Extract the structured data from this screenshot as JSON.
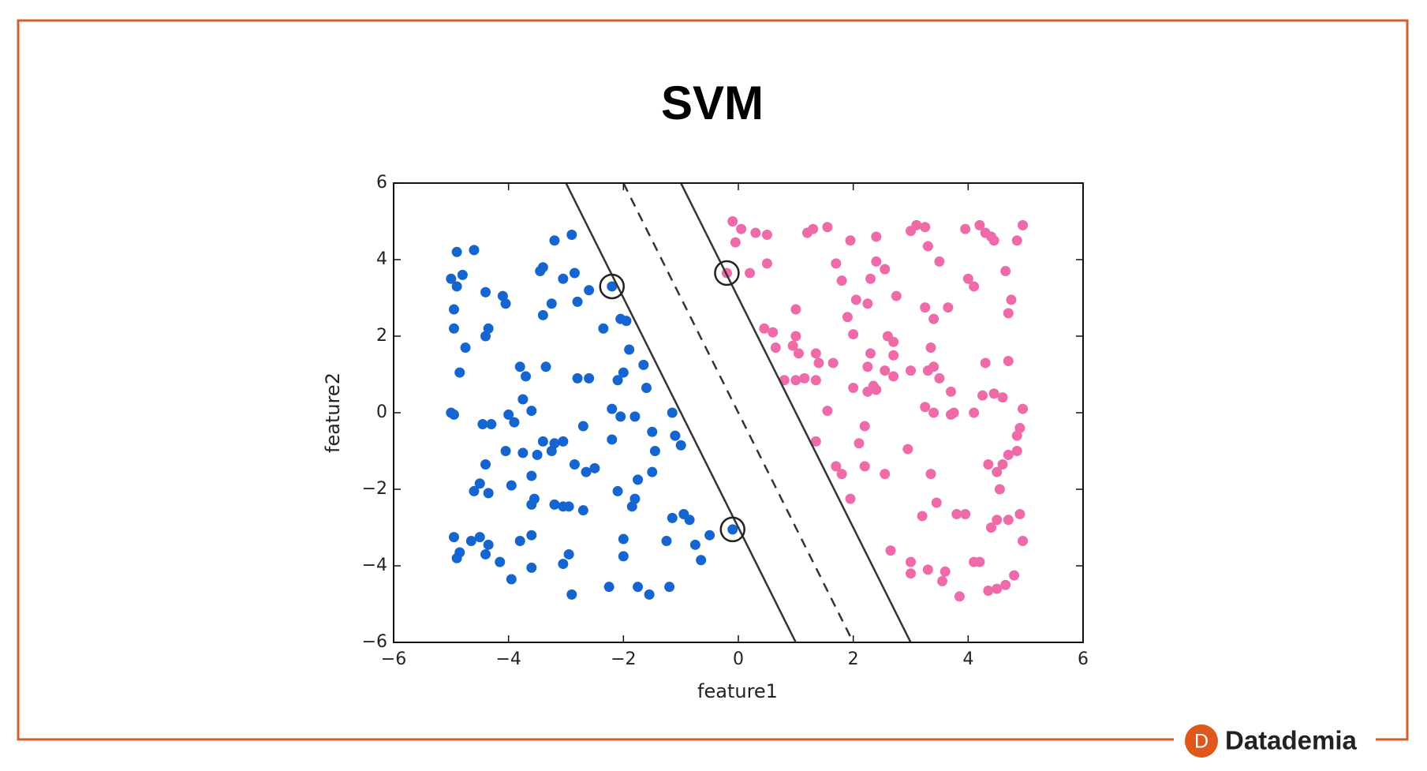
{
  "chart_data": {
    "type": "scatter",
    "title": "SVM",
    "xlabel": "feature1",
    "ylabel": "feature2",
    "xlim": [
      -6,
      6
    ],
    "ylim": [
      -6,
      6
    ],
    "xticks": [
      {
        "value": -6,
        "label": "−6"
      },
      {
        "value": -4,
        "label": "−4"
      },
      {
        "value": -2,
        "label": "−2"
      },
      0,
      2,
      4,
      6
    ],
    "yticks": [
      {
        "value": -6,
        "label": "−6"
      },
      {
        "value": -4,
        "label": "−4"
      },
      {
        "value": -2,
        "label": "−2"
      },
      0,
      2,
      4,
      6
    ],
    "series": [
      {
        "marker": "dot",
        "color": "#1565d0",
        "x": [
          -4.9,
          -4.6,
          -5,
          -4.8,
          -4.4,
          -4.9,
          -4.95,
          -4.1,
          -4.05,
          -4.35,
          -4.95,
          -4.4,
          -4.75,
          -4.85,
          -3.4,
          -3.45,
          -3.2,
          -2.9,
          -3.05,
          -2.85,
          -3.4,
          -3.25,
          -2.8,
          -2.6,
          -2.35,
          -2.05,
          -1.95,
          -1.9,
          -1.65,
          -2.0,
          -2.1,
          -2.6,
          -2.8,
          -1.6,
          -3.8,
          -3.7,
          -3.35,
          -3.75,
          -3.6,
          -4.0,
          -3.9,
          -4.3,
          -4.45,
          -4.95,
          -5,
          -3.4,
          -3.2,
          -3.05,
          -3.25,
          -3.5,
          -3.75,
          -4.05,
          -4.4,
          -4.5,
          -4.6,
          -4.35,
          -3.95,
          -3.6,
          -3.6,
          -3.55,
          -3.2,
          -3.05,
          -2.95,
          -2.7,
          -2.85,
          -2.65,
          -2.5,
          -2.7,
          -2.2,
          -2.2,
          -2.05,
          -1.8,
          -1.5,
          -1.15,
          -1.1,
          -1.0,
          -1.45,
          -1.5,
          -1.75,
          -1.8,
          -2.1,
          -1.85,
          -2.0,
          -2.0,
          -1.15,
          -0.95,
          -0.85,
          -1.25,
          -0.75,
          -0.5,
          -0.65,
          -0.1,
          -4.95,
          -4.85,
          -4.9,
          -4.65,
          -4.5,
          -4.35,
          -4.4,
          -4.15,
          -3.95,
          -3.8,
          -3.6,
          -3.6,
          -3.05,
          -2.95,
          -2.9,
          -2.25,
          -1.75,
          -1.55,
          -1.2,
          -2.2
        ],
        "values": [
          4.2,
          4.25,
          3.5,
          3.6,
          3.15,
          3.3,
          2.7,
          3.05,
          2.85,
          2.2,
          2.2,
          2.0,
          1.7,
          1.05,
          3.8,
          3.7,
          4.5,
          4.65,
          3.5,
          3.65,
          2.55,
          2.85,
          2.9,
          3.2,
          2.2,
          2.45,
          2.4,
          1.65,
          1.25,
          1.05,
          0.85,
          0.9,
          0.9,
          0.65,
          1.2,
          0.95,
          1.2,
          0.35,
          0.05,
          -0.05,
          -0.25,
          -0.3,
          -0.3,
          -0.05,
          0,
          -0.75,
          -0.8,
          -0.75,
          -1.0,
          -1.1,
          -1.05,
          -1.0,
          -1.35,
          -1.85,
          -2.05,
          -2.1,
          -1.9,
          -1.65,
          -2.4,
          -2.25,
          -2.4,
          -2.45,
          -2.45,
          -2.55,
          -1.35,
          -1.55,
          -1.45,
          -0.35,
          -0.7,
          0.1,
          -0.1,
          -0.1,
          -0.5,
          0.0,
          -0.6,
          -0.85,
          -1.0,
          -1.55,
          -1.75,
          -2.25,
          -2.05,
          -2.45,
          -3.3,
          -3.75,
          -2.75,
          -2.65,
          -2.8,
          -3.35,
          -3.45,
          -3.2,
          -3.85,
          -3.05,
          -3.25,
          -3.65,
          -3.8,
          -3.35,
          -3.25,
          -3.45,
          -3.7,
          -3.9,
          -4.35,
          -3.35,
          -3.2,
          -4.05,
          -3.95,
          -3.7,
          -4.75,
          -4.55,
          -4.55,
          -4.75,
          -4.55,
          3.3
        ]
      },
      {
        "marker": "dot",
        "color": "#ee6aa8",
        "x": [
          -0.1,
          0.05,
          0.3,
          0.5,
          -0.05,
          1.2,
          1.3,
          1.55,
          1.95,
          2.4,
          2.75,
          3.1,
          3.25,
          3.0,
          3.3,
          3.5,
          3.95,
          4.2,
          4.3,
          4.4,
          4.45,
          4.85,
          4.95,
          0.2,
          0.5,
          -0.2,
          1.7,
          1.8,
          2.3,
          2.4,
          2.55,
          4.0,
          4.1,
          4.65,
          4.75,
          4.7,
          1.0,
          0.45,
          0.6,
          1.9,
          2.05,
          2.25,
          3.25,
          3.4,
          3.65,
          2.0,
          2.6,
          2.7,
          0.65,
          0.95,
          1.0,
          1.05,
          1.35,
          1.4,
          1.65,
          2.3,
          2.7,
          3.35,
          2.25,
          2.55,
          2.7,
          3.0,
          3.3,
          3.4,
          3.5,
          4.3,
          4.7,
          0.8,
          1.0,
          1.15,
          1.35,
          2.0,
          2.25,
          2.35,
          2.4,
          3.25,
          3.4,
          3.7,
          3.75,
          3.7,
          4.1,
          4.25,
          4.45,
          4.6,
          4.95,
          1.55,
          2.2,
          2.1,
          1.35,
          1.7,
          1.8,
          1.95,
          2.2,
          2.55,
          2.95,
          3.35,
          3.45,
          3.2,
          3.8,
          3.95,
          4.35,
          4.5,
          4.6,
          4.7,
          4.85,
          4.85,
          4.9,
          4.55,
          4.5,
          4.4,
          4.7,
          4.9,
          4.95,
          2.65,
          3.0,
          3.0,
          3.3,
          3.6,
          3.55,
          3.85,
          4.1,
          4.2,
          4.35,
          4.5,
          4.65,
          4.8
        ],
        "values": [
          5.0,
          4.8,
          4.7,
          4.65,
          4.45,
          4.7,
          4.8,
          4.85,
          4.5,
          4.6,
          3.05,
          4.9,
          4.85,
          4.75,
          4.35,
          3.95,
          4.8,
          4.9,
          4.7,
          4.6,
          4.5,
          4.5,
          4.9,
          3.65,
          3.9,
          3.65,
          3.9,
          3.45,
          3.5,
          3.95,
          3.75,
          3.5,
          3.3,
          3.7,
          2.95,
          2.6,
          2.7,
          2.2,
          2.1,
          2.5,
          2.95,
          2.85,
          2.75,
          2.45,
          2.75,
          2.05,
          2.0,
          1.85,
          1.7,
          1.75,
          2.0,
          1.55,
          1.55,
          1.3,
          1.3,
          1.55,
          1.5,
          1.7,
          1.2,
          1.1,
          0.95,
          1.1,
          1.1,
          1.2,
          0.9,
          1.3,
          1.35,
          0.85,
          0.85,
          0.9,
          0.85,
          0.65,
          0.55,
          0.7,
          0.6,
          0.15,
          0.0,
          0.55,
          0.0,
          -0.05,
          0.0,
          0.45,
          0.5,
          0.4,
          0.1,
          0.05,
          -0.35,
          -0.8,
          -0.75,
          -1.4,
          -1.6,
          -2.25,
          -1.4,
          -1.6,
          -0.95,
          -1.6,
          -2.35,
          -2.7,
          -2.65,
          -2.65,
          -1.35,
          -1.55,
          -1.35,
          -1.1,
          -1.0,
          -0.6,
          -0.4,
          -2.0,
          -2.8,
          -3.0,
          -2.8,
          -2.65,
          -3.35,
          -3.6,
          -3.9,
          -4.2,
          -4.1,
          -4.15,
          -4.4,
          -4.8,
          -3.9,
          -3.9,
          -4.65,
          -4.6,
          -4.5,
          -4.25
        ]
      },
      {
        "marker": "line",
        "style": "solid",
        "color": "#333333",
        "x": [
          -3,
          1
        ],
        "values": [
          6,
          -6
        ]
      },
      {
        "marker": "line",
        "style": "dashed",
        "color": "#333333",
        "x": [
          -2,
          2
        ],
        "values": [
          6,
          -6
        ]
      },
      {
        "marker": "line",
        "style": "solid",
        "color": "#333333",
        "x": [
          -1,
          3
        ],
        "values": [
          6,
          -6
        ]
      },
      {
        "marker": "ring",
        "color": "#222222",
        "x": [
          -2.2,
          -0.2,
          -0.1
        ],
        "values": [
          3.3,
          3.65,
          -3.05
        ]
      }
    ]
  },
  "brand": {
    "letter": "D",
    "name": "Datademia"
  }
}
